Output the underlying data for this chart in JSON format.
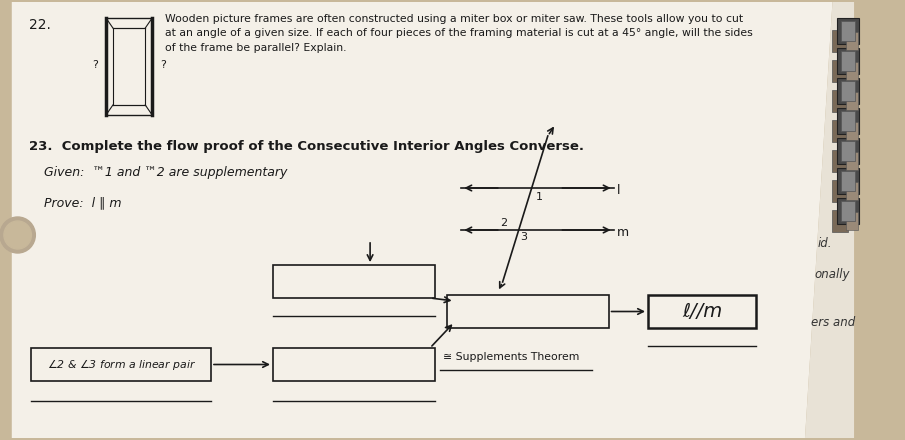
{
  "bg_color": "#c8b89a",
  "paper_color": "#f0ece4",
  "title22": "22.",
  "problem22_text": "Wooden picture frames are often constructed using a miter box or miter saw. These tools allow you to cut\nat an angle of a given size. If each of four pieces of the framing material is cut at a 45° angle, will the sides\nof the frame be parallel? Explain.",
  "problem23_bold": "23.  Complete the flow proof of the Consecutive Interior Angles Converse.",
  "given_text": "Given:  ™1 and ™2 are supplementary",
  "prove_text": "Prove:  l ∥ m",
  "box_ellm": "ℓ//m",
  "supplements_label": "≅ Supplements Theorem",
  "right_text1": "id.",
  "right_text2": "onally",
  "right_text3": "ers and",
  "lc": "#1a1a1a",
  "paper_white": "#f4f0e8",
  "hole_color": "#d0c8b8",
  "ring_color": "#888888",
  "binder_dots": true
}
